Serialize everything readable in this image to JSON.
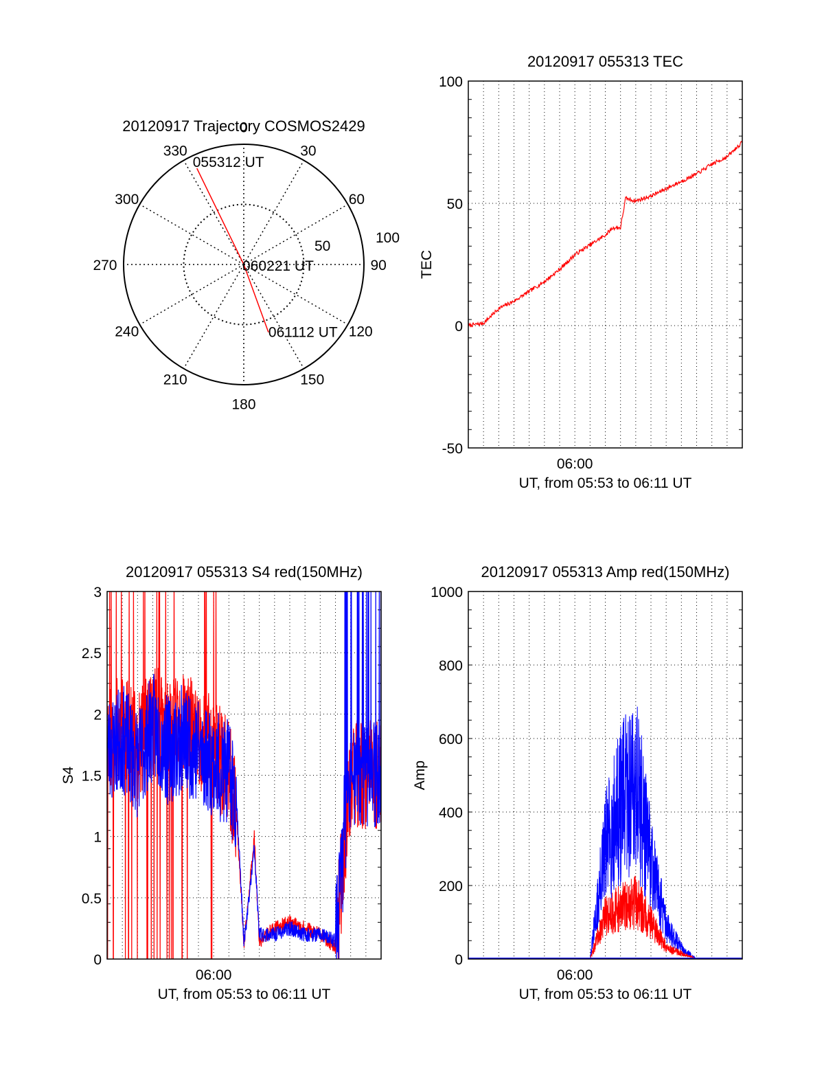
{
  "chart_data": [
    {
      "id": "trajectory",
      "type": "polar",
      "title": "20120917 Trajectory COSMOS2429",
      "azimuth_labels": [
        "0",
        "30",
        "60",
        "90",
        "120",
        "150",
        "180",
        "210",
        "240",
        "270",
        "300",
        "330"
      ],
      "azimuths": [
        0,
        30,
        60,
        90,
        120,
        150,
        180,
        210,
        240,
        270,
        300,
        330
      ],
      "radial_labels": [
        "50",
        "100"
      ],
      "radial_values": [
        50,
        100
      ],
      "rmax": 100,
      "grid": true,
      "track": {
        "color": "#ff0000",
        "start": {
          "label": "055312 UT",
          "az": 334,
          "r": 89
        },
        "mid": {
          "label": "060221 UT",
          "az": 0,
          "r": 0
        },
        "end": {
          "label": "061112 UT",
          "az": 160,
          "r": 60
        }
      }
    },
    {
      "id": "tec",
      "type": "line",
      "title": "20120917 055313 TEC",
      "ylabel": "TEC",
      "xlabel": "UT, from 05:53 to 06:11 UT",
      "xtick_labels": [
        "06:00"
      ],
      "xtick_values": [
        "06:00"
      ],
      "yticks": [
        -50,
        0,
        50,
        100
      ],
      "ylim": [
        -50,
        100
      ],
      "xlim": [
        "05:53",
        "06:11"
      ],
      "grid": true,
      "series": [
        {
          "color": "#ff0000",
          "x": [
            "05:53",
            "05:54",
            "05:55",
            "05:56",
            "05:57",
            "05:58",
            "05:59",
            "06:00",
            "06:01",
            "06:02",
            "06:02:30",
            "06:03",
            "06:03:20",
            "06:04",
            "06:05",
            "06:06",
            "06:07",
            "06:08",
            "06:09",
            "06:10",
            "06:11"
          ],
          "values": [
            0,
            1,
            7,
            10,
            14,
            18,
            23,
            29,
            33,
            37,
            40,
            40,
            52,
            51,
            53,
            56,
            59,
            62,
            66,
            69,
            75
          ]
        }
      ]
    },
    {
      "id": "s4",
      "type": "line",
      "title": "20120917 055313 S4 red(150MHz)",
      "ylabel": "S4",
      "xlabel": "UT, from 05:53 to 06:11 UT",
      "xtick_labels": [
        "06:00"
      ],
      "xtick_values": [
        "06:00"
      ],
      "ytick_labels": [
        "0",
        "0.5",
        "1",
        "1.5",
        "2",
        "2.5",
        "3"
      ],
      "yticks": [
        0,
        0.5,
        1,
        1.5,
        2,
        2.5,
        3
      ],
      "ylim": [
        0,
        3
      ],
      "xlim": [
        "05:53",
        "06:11"
      ],
      "grid": true,
      "series": [
        {
          "color": "#ff0000",
          "x": [
            "05:53",
            "05:54",
            "05:55",
            "05:56",
            "05:57",
            "05:58",
            "05:59",
            "06:00",
            "06:01",
            "06:01:30",
            "06:02",
            "06:02:40",
            "06:03",
            "06:04",
            "06:05",
            "06:06",
            "06:07",
            "06:08",
            "06:09",
            "06:10",
            "06:11"
          ],
          "values": [
            1.8,
            1.9,
            1.7,
            2.0,
            1.8,
            1.9,
            1.8,
            1.7,
            1.5,
            1.2,
            0.1,
            1.0,
            0.15,
            0.25,
            0.3,
            0.25,
            0.2,
            0.1,
            1.5,
            1.5,
            1.5
          ]
        },
        {
          "color": "#0000ff",
          "x": [
            "05:53",
            "05:54",
            "05:55",
            "05:56",
            "05:57",
            "05:58",
            "05:59",
            "06:00",
            "06:01",
            "06:01:30",
            "06:02",
            "06:02:40",
            "06:03",
            "06:04",
            "06:05",
            "06:06",
            "06:07",
            "06:08",
            "06:09",
            "06:10",
            "06:11"
          ],
          "values": [
            1.7,
            1.8,
            1.6,
            1.9,
            1.7,
            1.8,
            1.7,
            1.6,
            1.5,
            1.3,
            0.12,
            0.9,
            0.2,
            0.2,
            0.25,
            0.2,
            0.2,
            0.15,
            1.5,
            1.5,
            1.5
          ]
        }
      ]
    },
    {
      "id": "amp",
      "type": "line",
      "title": "20120917 055313 Amp red(150MHz)",
      "ylabel": "Amp",
      "xlabel": "UT, from 05:53 to 06:11 UT",
      "xtick_labels": [
        "06:00"
      ],
      "xtick_values": [
        "06:00"
      ],
      "yticks": [
        0,
        200,
        400,
        600,
        800,
        1000
      ],
      "ylim": [
        0,
        1000
      ],
      "xlim": [
        "05:53",
        "06:11"
      ],
      "grid": true,
      "series": [
        {
          "color": "#ff0000",
          "x": [
            "05:53",
            "06:00",
            "06:01",
            "06:02",
            "06:03",
            "06:04",
            "06:05",
            "06:06",
            "06:07",
            "06:08",
            "06:11"
          ],
          "values": [
            0,
            0,
            0,
            150,
            180,
            200,
            130,
            40,
            20,
            0,
            0
          ]
        },
        {
          "color": "#0000ff",
          "x": [
            "05:53",
            "06:00",
            "06:01",
            "06:02",
            "06:03",
            "06:04",
            "06:05",
            "06:06",
            "06:07",
            "06:08",
            "06:11"
          ],
          "values": [
            0,
            0,
            0,
            400,
            550,
            650,
            350,
            120,
            40,
            0,
            0
          ]
        }
      ]
    }
  ]
}
